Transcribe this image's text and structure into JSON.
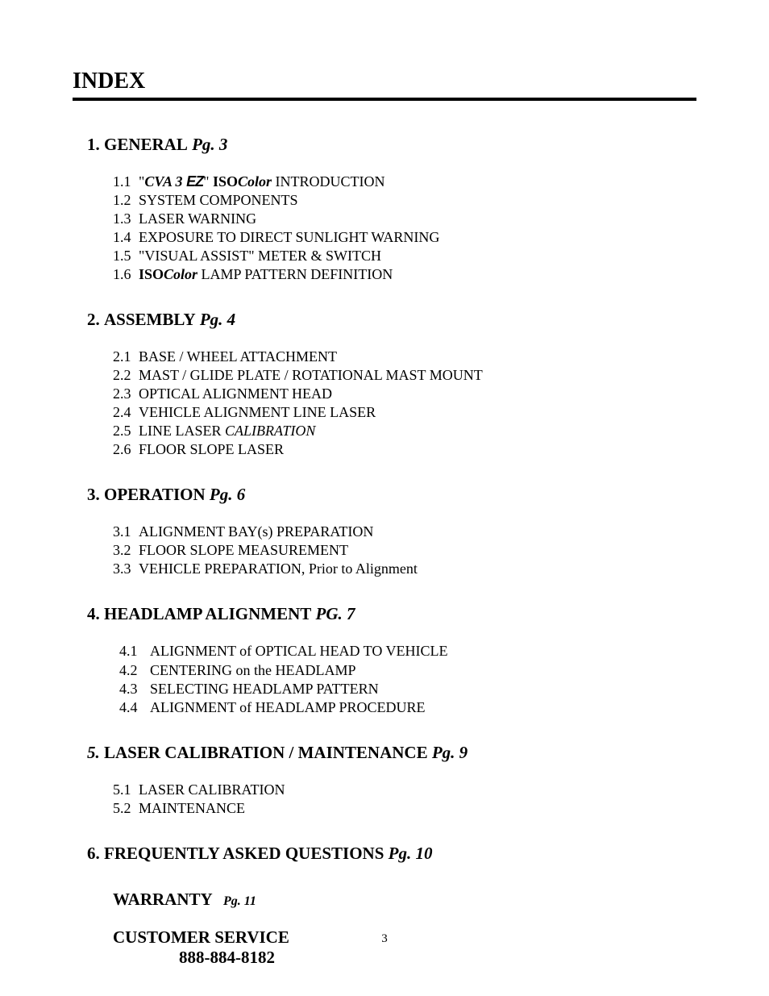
{
  "title": "INDEX",
  "sections": [
    {
      "num": "1.",
      "title": "GENERAL",
      "page": "Pg. 3",
      "num_italic": false,
      "page_style": "italic",
      "sub_indent": "normal",
      "subs": [
        {
          "num": "1.1",
          "parts": [
            {
              "text": "\"",
              "style": ""
            },
            {
              "text": "CVA 3 ",
              "style": "bold-italic"
            },
            {
              "text": "EZ",
              "style": "ez-logo"
            },
            {
              "text": "\" ",
              "style": ""
            },
            {
              "text": "ISO",
              "style": "bold"
            },
            {
              "text": "Color",
              "style": "bold-italic"
            },
            {
              "text": " INTRODUCTION",
              "style": ""
            }
          ]
        },
        {
          "num": "1.2",
          "parts": [
            {
              "text": "SYSTEM COMPONENTS",
              "style": ""
            }
          ]
        },
        {
          "num": "1.3",
          "parts": [
            {
              "text": "LASER WARNING",
              "style": ""
            }
          ]
        },
        {
          "num": "1.4",
          "parts": [
            {
              "text": "EXPOSURE TO DIRECT SUNLIGHT WARNING",
              "style": ""
            }
          ]
        },
        {
          "num": "1.5",
          "parts": [
            {
              "text": "\"VISUAL ASSIST\" METER & SWITCH",
              "style": ""
            }
          ]
        },
        {
          "num": "1.6",
          "parts": [
            {
              "text": "ISO",
              "style": "bold"
            },
            {
              "text": "Color",
              "style": "bold-italic"
            },
            {
              "text": " LAMP PATTERN DEFINITION",
              "style": ""
            }
          ]
        }
      ]
    },
    {
      "num": "2.",
      "title": "ASSEMBLY",
      "page": "Pg. 4",
      "num_italic": false,
      "sub_indent": "normal",
      "subs": [
        {
          "num": "2.1",
          "parts": [
            {
              "text": "BASE / WHEEL ATTACHMENT",
              "style": ""
            }
          ]
        },
        {
          "num": "2.2",
          "parts": [
            {
              "text": "MAST / GLIDE PLATE / ROTATIONAL MAST MOUNT",
              "style": ""
            }
          ]
        },
        {
          "num": "2.3",
          "parts": [
            {
              "text": "OPTICAL ALIGNMENT HEAD",
              "style": ""
            }
          ]
        },
        {
          "num": "2.4",
          "parts": [
            {
              "text": "VEHICLE ALIGNMENT LINE LASER",
              "style": ""
            }
          ]
        },
        {
          "num": "2.5",
          "parts": [
            {
              "text": "LINE LASER ",
              "style": ""
            },
            {
              "text": "CALIBRATION",
              "style": "italic"
            }
          ]
        },
        {
          "num": "2.6",
          "parts": [
            {
              "text": "FLOOR SLOPE LASER",
              "style": ""
            }
          ]
        }
      ]
    },
    {
      "num": "3.",
      "title": "OPERATION",
      "page": "Pg. 6",
      "num_italic": false,
      "sub_indent": "normal",
      "subs": [
        {
          "num": "3.1",
          "parts": [
            {
              "text": "ALIGNMENT BAY(s) PREPARATION",
              "style": ""
            }
          ]
        },
        {
          "num": "3.2",
          "parts": [
            {
              "text": "FLOOR SLOPE MEASUREMENT",
              "style": ""
            }
          ]
        },
        {
          "num": "3.3",
          "parts": [
            {
              "text": "VEHICLE PREPARATION, Prior to Alignment",
              "style": ""
            }
          ]
        }
      ]
    },
    {
      "num": "4.",
      "title": "HEADLAMP ALIGNMENT",
      "page": "PG. 7",
      "num_italic": false,
      "sub_indent": "wide",
      "subs": [
        {
          "num": "4.1",
          "parts": [
            {
              "text": "ALIGNMENT of OPTICAL HEAD TO VEHICLE",
              "style": ""
            }
          ]
        },
        {
          "num": "4.2",
          "parts": [
            {
              "text": "CENTERING on the HEADLAMP",
              "style": ""
            }
          ]
        },
        {
          "num": "4.3",
          "parts": [
            {
              "text": "SELECTING HEADLAMP PATTERN",
              "style": ""
            }
          ]
        },
        {
          "num": "4.4",
          "parts": [
            {
              "text": "ALIGNMENT of HEADLAMP PROCEDURE",
              "style": ""
            }
          ]
        }
      ]
    },
    {
      "num": "5.",
      "title": "LASER CALIBRATION / MAINTENANCE",
      "page": "Pg. 9",
      "num_italic": true,
      "sub_indent": "normal",
      "subs": [
        {
          "num": "5.1",
          "parts": [
            {
              "text": "LASER CALIBRATION",
              "style": ""
            }
          ]
        },
        {
          "num": "5.2",
          "parts": [
            {
              "text": "MAINTENANCE",
              "style": ""
            }
          ]
        }
      ]
    },
    {
      "num": "6.",
      "title": "FREQUENTLY ASKED QUESTIONS",
      "page": "Pg. 10",
      "num_italic": false,
      "sub_indent": "normal",
      "subs": []
    }
  ],
  "warranty": {
    "label": "WARRANTY",
    "page": "Pg. 11"
  },
  "customer_service": {
    "label": "CUSTOMER SERVICE",
    "phone": "888-884-8182"
  },
  "page_number": "3"
}
